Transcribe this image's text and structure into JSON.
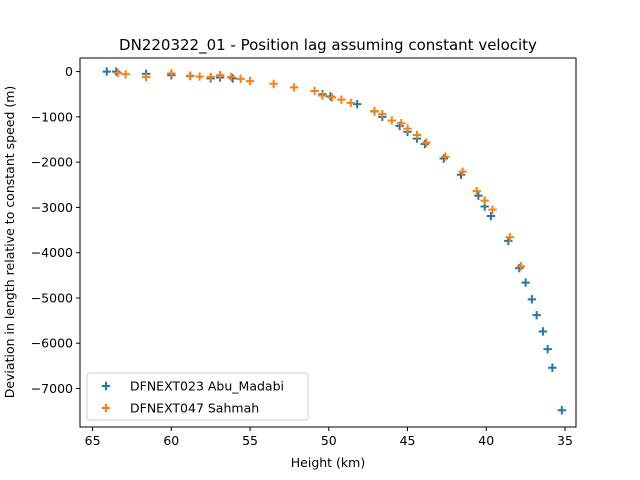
{
  "chart_data": {
    "type": "scatter",
    "title": "DN220322_01 - Position lag assuming constant velocity",
    "xlabel": "Height (km)",
    "ylabel": "Deviation in length relative to constant speed (m)",
    "xlim": [
      65.8,
      34.3
    ],
    "ylim": [
      -7850,
      300
    ],
    "x_inverted": true,
    "xticks": [
      65,
      60,
      55,
      50,
      45,
      40,
      35
    ],
    "yticks": [
      0,
      -1000,
      -2000,
      -3000,
      -4000,
      -5000,
      -6000,
      -7000
    ],
    "grid": false,
    "legend_position": "lower-left",
    "marker": "+",
    "series": [
      {
        "name": "DFNEXT023 Abu_Madabi",
        "color": "#1f77b4",
        "x": [
          64.1,
          63.5,
          61.6,
          60.0,
          58.8,
          57.5,
          56.9,
          56.1,
          50.4,
          49.9,
          48.2,
          47.1,
          46.6,
          45.5,
          45.0,
          44.4,
          43.9,
          42.7,
          41.6,
          40.5,
          40.1,
          39.7,
          38.6,
          37.9,
          37.5,
          37.1,
          36.8,
          36.4,
          36.1,
          35.8,
          35.2
        ],
        "y": [
          0,
          0,
          -50,
          -80,
          -100,
          -150,
          -130,
          -150,
          -500,
          -550,
          -720,
          -880,
          -1000,
          -1200,
          -1330,
          -1480,
          -1600,
          -1920,
          -2280,
          -2740,
          -2980,
          -3190,
          -3740,
          -4340,
          -4660,
          -5030,
          -5380,
          -5740,
          -6130,
          -6540,
          -7480
        ]
      },
      {
        "name": "DFNEXT047 Sahmah",
        "color": "#ff7f0e",
        "x": [
          63.4,
          62.9,
          61.6,
          60.0,
          58.8,
          58.2,
          57.5,
          56.9,
          56.2,
          55.6,
          55.0,
          53.5,
          52.2,
          50.9,
          50.4,
          49.8,
          49.2,
          48.6,
          47.1,
          46.6,
          46.0,
          45.4,
          45.0,
          44.4,
          43.8,
          42.6,
          41.5,
          40.6,
          40.1,
          39.6,
          38.5,
          37.8
        ],
        "y": [
          -30,
          -60,
          -120,
          -40,
          -90,
          -110,
          -120,
          -80,
          -120,
          -160,
          -210,
          -270,
          -350,
          -430,
          -530,
          -570,
          -620,
          -690,
          -870,
          -940,
          -1080,
          -1140,
          -1260,
          -1400,
          -1570,
          -1880,
          -2210,
          -2640,
          -2850,
          -3050,
          -3660,
          -4300
        ]
      }
    ]
  }
}
